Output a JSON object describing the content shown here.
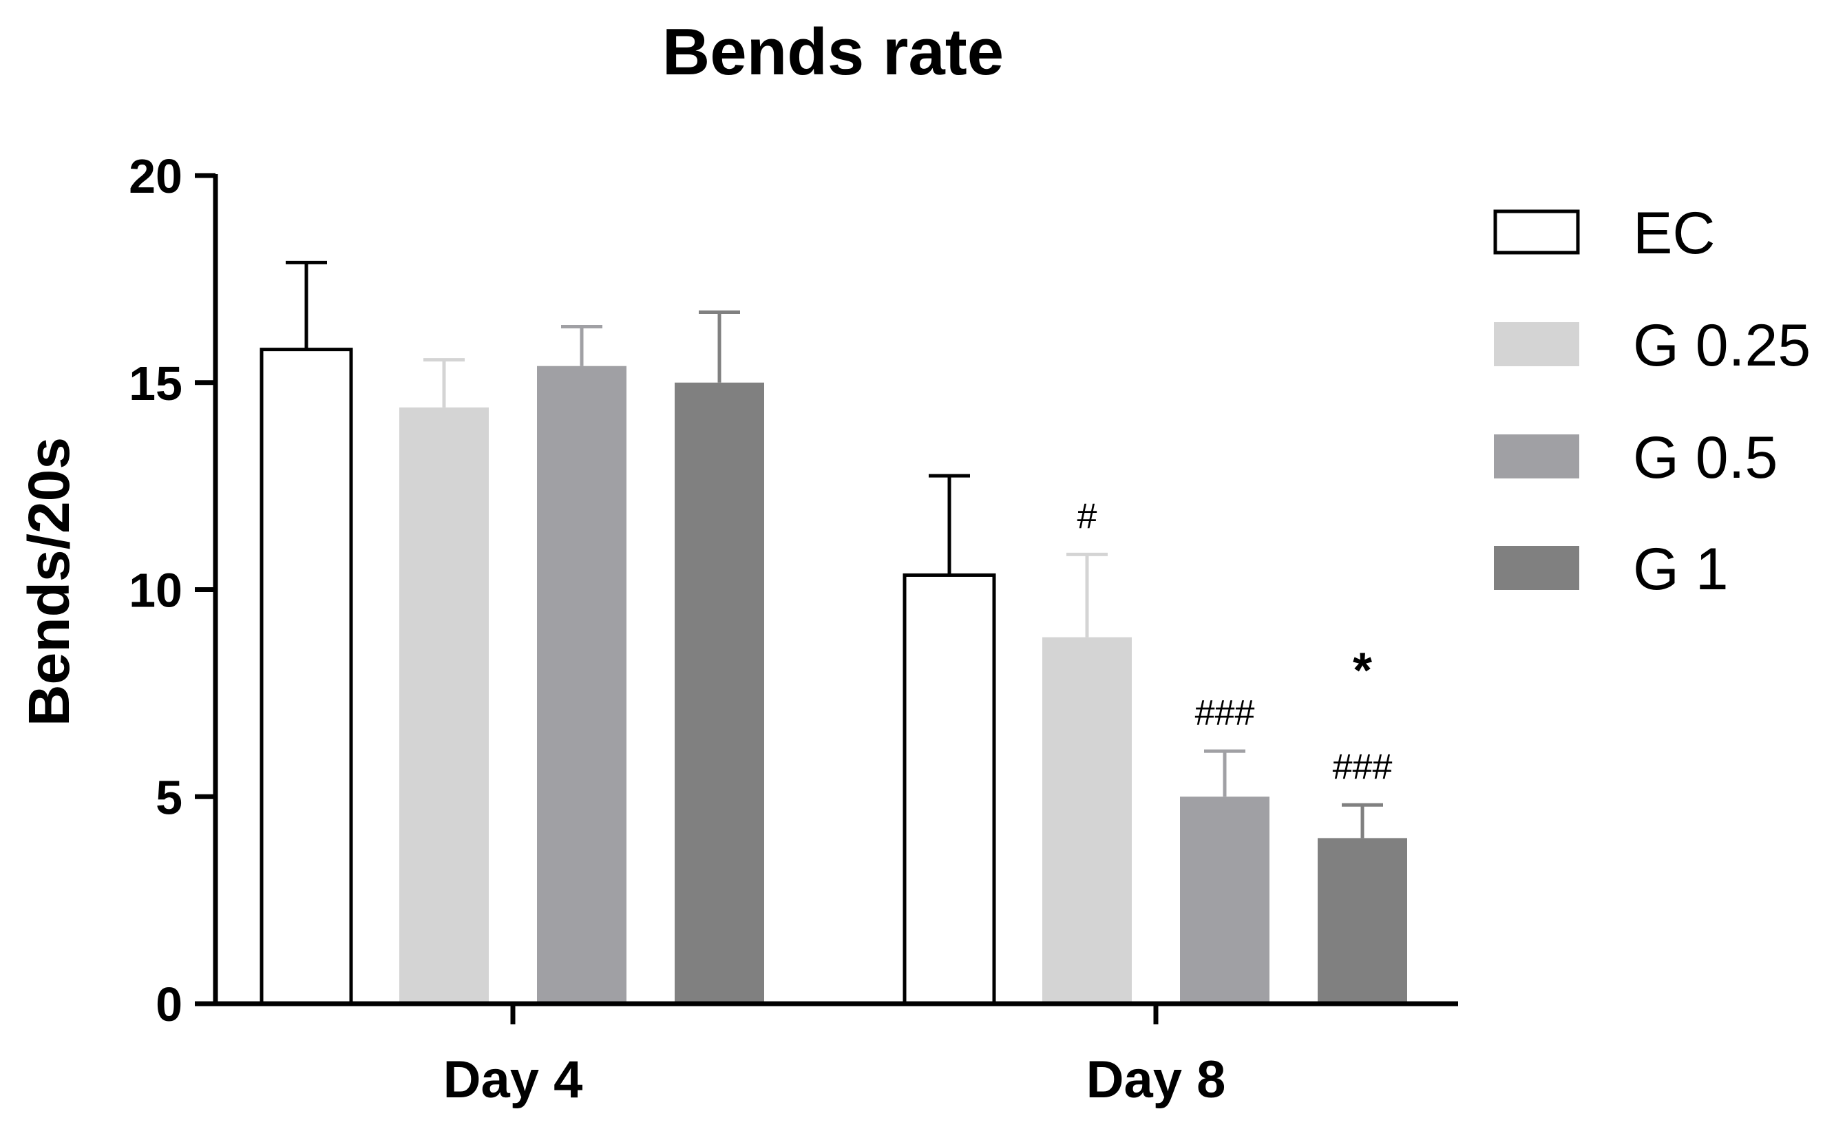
{
  "chart_data": {
    "type": "bar",
    "title": "Bends rate",
    "xlabel": "",
    "ylabel": "Bends/20s",
    "ylim": [
      0,
      20
    ],
    "yticks": [
      0,
      5,
      10,
      15,
      20
    ],
    "categories": [
      "Day 4",
      "Day 8"
    ],
    "legend_position": "right",
    "series": [
      {
        "name": "EC",
        "color": "#ffffff",
        "values": [
          15.8,
          10.35
        ],
        "errors": [
          2.1,
          2.4
        ]
      },
      {
        "name": "G 0.25",
        "color": "#d4d4d4",
        "values": [
          14.4,
          8.85
        ],
        "errors": [
          1.15,
          2.0
        ]
      },
      {
        "name": "G 0.5",
        "color": "#a0a0a4",
        "values": [
          15.4,
          5.0
        ],
        "errors": [
          0.95,
          1.1
        ]
      },
      {
        "name": "G 1",
        "color": "#808080",
        "values": [
          15.0,
          4.0
        ],
        "errors": [
          1.7,
          0.8
        ]
      }
    ],
    "annotations": [
      {
        "category": "Day 8",
        "series": "G 0.25",
        "lines": [
          "#"
        ]
      },
      {
        "category": "Day 8",
        "series": "G 0.5",
        "lines": [
          "###"
        ]
      },
      {
        "category": "Day 8",
        "series": "G 1",
        "lines": [
          "*",
          "###"
        ]
      }
    ]
  }
}
